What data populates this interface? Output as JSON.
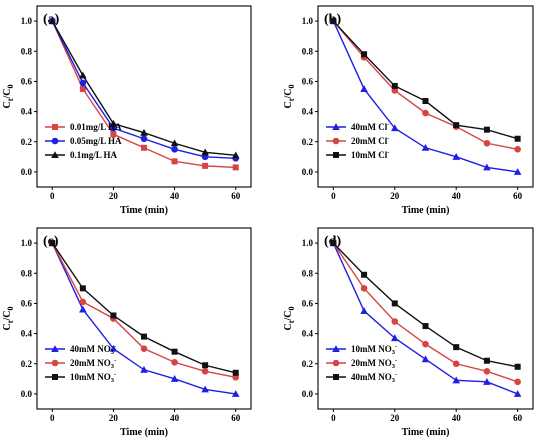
{
  "chart_data": [
    {
      "type": "line",
      "panel_label": "(a)",
      "xlabel": "Time (min)",
      "ylabel_main": "C",
      "ylabel_sub1": "t",
      "ylabel_sep": "/C",
      "ylabel_sub2": "0",
      "xlim": [
        -5,
        65
      ],
      "ylim": [
        -0.1,
        1.1
      ],
      "xticks": [
        "0",
        "20",
        "40",
        "60"
      ],
      "yticks": [
        "0.0",
        "0.2",
        "0.4",
        "0.6",
        "0.8",
        "1.0"
      ],
      "legend": "bottom-left",
      "x": [
        0,
        10,
        20,
        30,
        40,
        50,
        60
      ],
      "series": [
        {
          "name": "0.01mg/L HA",
          "color": "#d64541",
          "marker": "square",
          "values": [
            1.0,
            0.55,
            0.25,
            0.16,
            0.07,
            0.04,
            0.03
          ]
        },
        {
          "name": "0.05mg/L HA",
          "color": "#1f1fe6",
          "marker": "circle",
          "values": [
            1.0,
            0.59,
            0.29,
            0.22,
            0.15,
            0.1,
            0.09
          ]
        },
        {
          "name": "0.1mg/L HA",
          "color": "#111111",
          "marker": "triangle",
          "values": [
            1.0,
            0.64,
            0.32,
            0.26,
            0.19,
            0.13,
            0.11
          ]
        }
      ]
    },
    {
      "type": "line",
      "panel_label": "(b)",
      "xlabel": "Time (min)",
      "ylabel_main": "C",
      "ylabel_sub1": "t",
      "ylabel_sep": "/C",
      "ylabel_sub2": "0",
      "xlim": [
        -5,
        65
      ],
      "ylim": [
        -0.1,
        1.1
      ],
      "xticks": [
        "0",
        "20",
        "40",
        "60"
      ],
      "yticks": [
        "0.0",
        "0.2",
        "0.4",
        "0.6",
        "0.8",
        "1.0"
      ],
      "legend": "bottom-left",
      "x": [
        0,
        10,
        20,
        30,
        40,
        50,
        60
      ],
      "series": [
        {
          "name": "40mM Cl",
          "sup": "-",
          "color": "#1f1fe6",
          "marker": "triangle",
          "values": [
            1.0,
            0.55,
            0.29,
            0.16,
            0.1,
            0.03,
            0.0
          ]
        },
        {
          "name": "20mM Cl",
          "sup": "-",
          "color": "#d64541",
          "marker": "circle",
          "values": [
            1.0,
            0.76,
            0.54,
            0.39,
            0.3,
            0.19,
            0.15
          ]
        },
        {
          "name": "10mM Cl",
          "sup": "-",
          "color": "#111111",
          "marker": "square",
          "values": [
            1.0,
            0.78,
            0.57,
            0.47,
            0.31,
            0.28,
            0.22
          ]
        }
      ]
    },
    {
      "type": "line",
      "panel_label": "(c)",
      "xlabel": "Time (min)",
      "ylabel_main": "C",
      "ylabel_sub1": "t",
      "ylabel_sep": "/C",
      "ylabel_sub2": "0",
      "xlim": [
        -5,
        65
      ],
      "ylim": [
        -0.1,
        1.1
      ],
      "xticks": [
        "0",
        "20",
        "40",
        "60"
      ],
      "yticks": [
        "0.0",
        "0.2",
        "0.4",
        "0.6",
        "0.8",
        "1.0"
      ],
      "legend": "bottom-left",
      "x": [
        0,
        10,
        20,
        30,
        40,
        50,
        60
      ],
      "series": [
        {
          "name": "40mM NO",
          "sub": "3",
          "sup": "-",
          "color": "#1f1fe6",
          "marker": "triangle",
          "values": [
            1.0,
            0.56,
            0.3,
            0.16,
            0.1,
            0.03,
            0.0
          ]
        },
        {
          "name": "20mM NO",
          "sub": "3",
          "sup": "-",
          "color": "#d64541",
          "marker": "circle",
          "values": [
            1.0,
            0.61,
            0.5,
            0.3,
            0.21,
            0.15,
            0.11
          ]
        },
        {
          "name": "10mM NO",
          "sub": "3",
          "sup": "-",
          "color": "#111111",
          "marker": "square",
          "values": [
            1.0,
            0.7,
            0.52,
            0.38,
            0.28,
            0.19,
            0.14
          ]
        }
      ]
    },
    {
      "type": "line",
      "panel_label": "(d)",
      "xlabel": "Time (min)",
      "ylabel_main": "C",
      "ylabel_sub1": "t",
      "ylabel_sep": "/C",
      "ylabel_sub2": "0",
      "xlim": [
        -5,
        65
      ],
      "ylim": [
        -0.1,
        1.1
      ],
      "xticks": [
        "0",
        "20",
        "40",
        "60"
      ],
      "yticks": [
        "0.0",
        "0.2",
        "0.4",
        "0.6",
        "0.8",
        "1.0"
      ],
      "legend": "bottom-left",
      "x": [
        0,
        10,
        20,
        30,
        40,
        50,
        60
      ],
      "series": [
        {
          "name": "10mM NO",
          "sub": "3",
          "sup": "-",
          "color": "#1f1fe6",
          "marker": "triangle",
          "values": [
            1.0,
            0.55,
            0.37,
            0.23,
            0.09,
            0.08,
            0.0
          ]
        },
        {
          "name": "20mM NO",
          "sub": "3",
          "sup": "-",
          "color": "#d64541",
          "marker": "circle",
          "values": [
            1.0,
            0.7,
            0.48,
            0.33,
            0.2,
            0.15,
            0.08
          ]
        },
        {
          "name": "40mM NO",
          "sub": "3",
          "sup": "-",
          "color": "#111111",
          "marker": "square",
          "values": [
            1.0,
            0.79,
            0.6,
            0.45,
            0.31,
            0.22,
            0.18
          ]
        }
      ]
    }
  ]
}
